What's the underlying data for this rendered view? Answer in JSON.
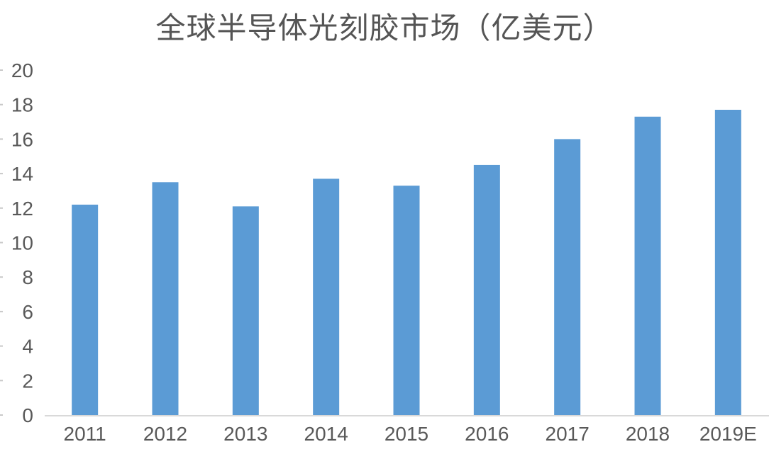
{
  "title": "全球半导体光刻胶市场（亿美元）",
  "colors": {
    "bar": "#5b9bd5",
    "axis_line": "#d9d9d9",
    "tick_mark": "#c9c9c9",
    "label_text": "#595959",
    "title_text": "#555555",
    "background": "#ffffff"
  },
  "chart_data": {
    "type": "bar",
    "title": "全球半导体光刻胶市场（亿美元）",
    "categories": [
      "2011",
      "2012",
      "2013",
      "2014",
      "2015",
      "2016",
      "2017",
      "2018",
      "2019E"
    ],
    "values": [
      12.2,
      13.5,
      12.1,
      13.7,
      13.3,
      14.5,
      16.0,
      17.3,
      17.7
    ],
    "series_name": "全球半导体光刻胶市场",
    "xlabel": "",
    "ylabel": "",
    "ylim": [
      0,
      20
    ],
    "yticks": [
      0,
      2,
      4,
      6,
      8,
      10,
      12,
      14,
      16,
      18,
      20
    ],
    "grid": false,
    "legend_position": "none",
    "unit": "亿美元"
  }
}
